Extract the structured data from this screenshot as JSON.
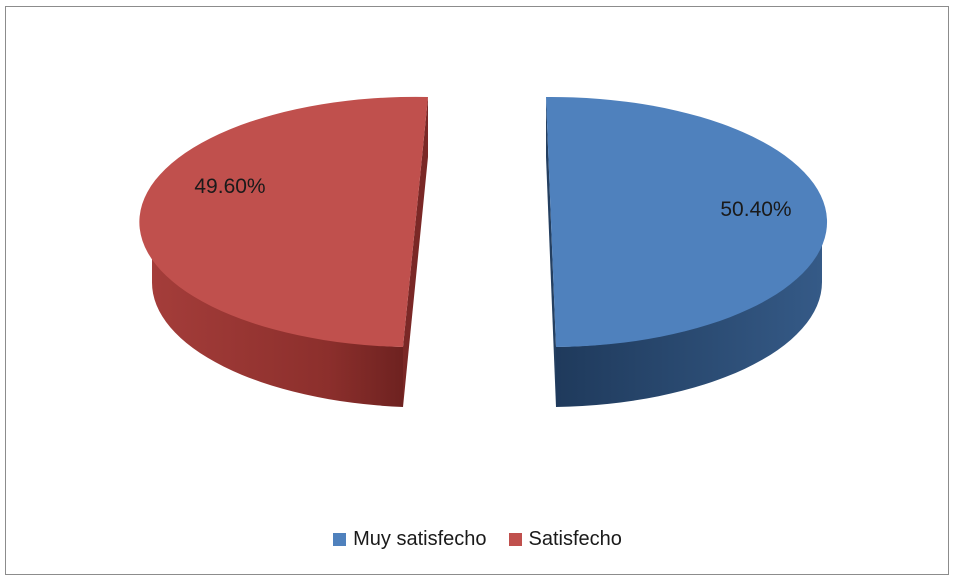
{
  "chart_data": {
    "type": "pie",
    "title": "",
    "style": "3d-exploded",
    "legend_position": "bottom",
    "slices": [
      {
        "name": "Muy satisfecho",
        "value": 50.4,
        "label": "50.40%",
        "color": "#4f81bd",
        "side_color": "#2c4d75"
      },
      {
        "name": "Satisfecho",
        "value": 49.6,
        "label": "49.60%",
        "color": "#c0504d",
        "side_color": "#8c2f2c"
      }
    ]
  },
  "legend": {
    "items": [
      {
        "label": "Muy satisfecho",
        "color": "#4f81bd"
      },
      {
        "label": "Satisfecho",
        "color": "#c0504d"
      }
    ]
  }
}
